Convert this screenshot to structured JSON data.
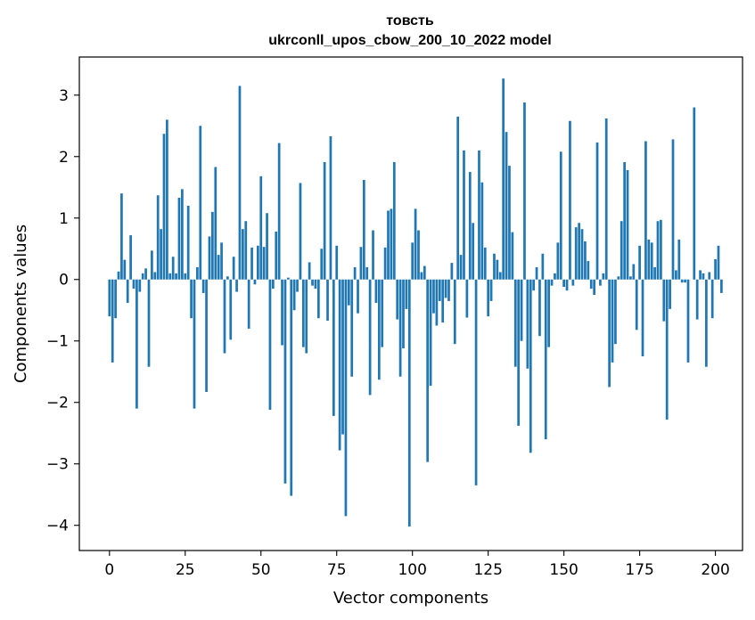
{
  "chart_data": {
    "type": "bar",
    "title_line1": "товсть",
    "title_line2": "ukrconll_upos_cbow_200_10_2022 model",
    "xlabel": "Vector components",
    "ylabel": "Components values",
    "xlim": [
      -9.95,
      208.95
    ],
    "ylim": [
      -4.41,
      3.62
    ],
    "xticks": [
      0,
      25,
      50,
      75,
      100,
      125,
      150,
      175,
      200
    ],
    "yticks": [
      3,
      2,
      1,
      0,
      -1,
      -2,
      -3,
      -4
    ],
    "ytick_labels": [
      "3",
      "2",
      "1",
      "0",
      "−1",
      "−2",
      "−3",
      "−4"
    ],
    "grid": false,
    "bar_color": "#1f77b4",
    "values": [
      -0.6,
      -1.35,
      -0.63,
      0.13,
      1.4,
      0.32,
      -0.38,
      0.72,
      -0.15,
      -2.1,
      -0.2,
      0.1,
      0.18,
      -1.42,
      0.47,
      0.12,
      1.37,
      0.82,
      2.37,
      2.6,
      0.1,
      0.37,
      0.1,
      1.33,
      1.47,
      0.1,
      1.2,
      -0.63,
      -2.1,
      0.2,
      2.5,
      -0.22,
      -1.83,
      0.7,
      1.1,
      1.83,
      0.4,
      0.6,
      -1.2,
      0.05,
      -0.98,
      0.37,
      -0.2,
      3.15,
      0.82,
      0.95,
      -0.8,
      0.52,
      -0.08,
      0.55,
      1.68,
      0.53,
      1.08,
      -2.12,
      -0.15,
      0.78,
      2.22,
      -1.07,
      -3.32,
      0.03,
      -3.52,
      -0.5,
      -0.2,
      1.57,
      -1.1,
      -1.2,
      0.28,
      -0.1,
      -0.15,
      -0.63,
      0.5,
      1.91,
      -0.67,
      2.33,
      -2.22,
      0.55,
      -2.78,
      -2.52,
      -3.85,
      -0.42,
      -1.58,
      0.2,
      -0.55,
      0.53,
      1.62,
      0.2,
      -1.88,
      0.8,
      -0.38,
      -1.63,
      -1.1,
      0.52,
      1.12,
      1.15,
      1.91,
      -0.65,
      -1.58,
      -1.12,
      -0.48,
      -4.02,
      0.6,
      1.15,
      0.8,
      0.12,
      0.22,
      -2.97,
      -1.73,
      -0.55,
      -0.75,
      -0.35,
      -0.7,
      -0.3,
      -0.35,
      0.27,
      -1.05,
      2.65,
      0.4,
      2.1,
      -0.62,
      1.75,
      0.92,
      -3.35,
      2.1,
      1.58,
      0.52,
      -0.6,
      -0.35,
      0.42,
      0.32,
      0.12,
      3.27,
      2.4,
      1.85,
      0.77,
      -1.42,
      -2.38,
      -1.0,
      2.88,
      -1.45,
      -2.82,
      -0.18,
      0.2,
      -0.92,
      0.42,
      -2.6,
      -1.1,
      -0.1,
      0.1,
      0.6,
      2.08,
      -0.12,
      -0.18,
      2.58,
      -0.1,
      0.85,
      0.92,
      0.82,
      0.62,
      0.3,
      -0.15,
      -0.25,
      2.23,
      -0.1,
      0.1,
      2.62,
      -1.75,
      -1.35,
      -1.05,
      0.05,
      0.95,
      1.91,
      1.78,
      0.05,
      0.25,
      -0.82,
      0.55,
      -1.25,
      2.25,
      0.65,
      0.6,
      0.2,
      0.95,
      0.97,
      -0.68,
      -2.28,
      -0.48,
      2.28,
      0.15,
      0.65,
      -0.05,
      -0.05,
      -1.35,
      0.0,
      2.8,
      -0.65,
      0.15,
      0.1,
      -1.42,
      0.12,
      -0.63,
      0.33,
      0.55,
      -0.22
    ]
  }
}
